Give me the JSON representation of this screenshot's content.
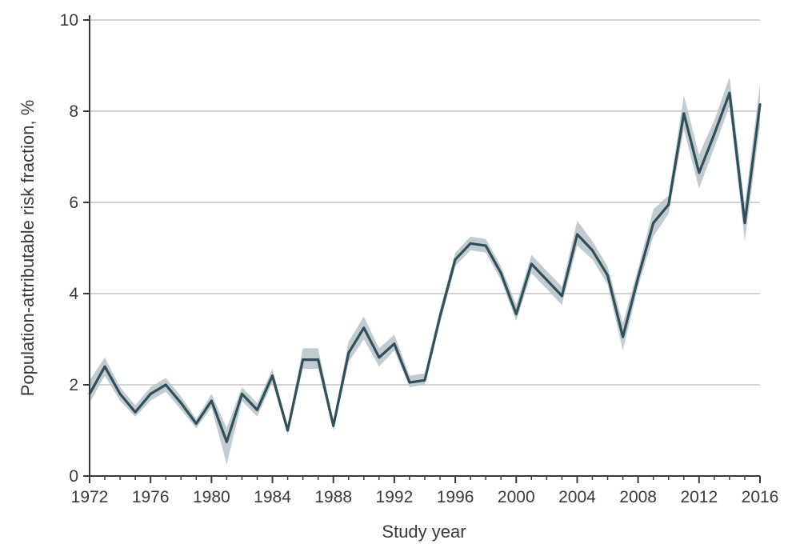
{
  "chart_data": {
    "type": "line",
    "title": "",
    "xlabel": "Study year",
    "ylabel": "Population-attributable risk fraction, %",
    "xlim": [
      1972,
      2016
    ],
    "ylim": [
      0,
      10
    ],
    "x_ticks": [
      1972,
      1976,
      1980,
      1984,
      1988,
      1992,
      1996,
      2000,
      2004,
      2008,
      2012,
      2016
    ],
    "y_ticks": [
      0,
      2,
      4,
      6,
      8,
      10
    ],
    "grid": "horizontal",
    "legend": "none",
    "colors": {
      "line": "#2f4f5b",
      "band": "#b9c7cc",
      "grid": "#d3d3d3",
      "axis": "#3a3a3a"
    },
    "series": [
      {
        "x": [
          1972,
          1973,
          1974,
          1975,
          1976,
          1977,
          1978,
          1979,
          1980,
          1981,
          1982,
          1983,
          1984,
          1985,
          1986,
          1987,
          1988,
          1989,
          1990,
          1991,
          1992,
          1993,
          1994,
          1995,
          1996,
          1997,
          1998,
          1999,
          2000,
          2001,
          2002,
          2003,
          2004,
          2005,
          2006,
          2007,
          2008,
          2009,
          2010,
          2011,
          2012,
          2013,
          2014,
          2015,
          2016
        ],
        "values": [
          1.8,
          2.4,
          1.8,
          1.4,
          1.8,
          2.0,
          1.6,
          1.15,
          1.65,
          0.75,
          1.8,
          1.45,
          2.2,
          1.0,
          2.55,
          2.55,
          1.1,
          2.7,
          3.25,
          2.6,
          2.9,
          2.05,
          2.1,
          3.5,
          4.75,
          5.1,
          5.05,
          4.45,
          3.55,
          4.65,
          4.3,
          3.95,
          5.3,
          4.95,
          4.4,
          3.05,
          4.35,
          5.55,
          5.95,
          7.95,
          6.65,
          7.5,
          8.4,
          5.55,
          8.15
        ],
        "lower": [
          1.6,
          2.2,
          1.65,
          1.3,
          1.65,
          1.85,
          1.45,
          1.05,
          1.5,
          0.25,
          1.65,
          1.3,
          2.05,
          0.9,
          2.35,
          2.35,
          1.0,
          2.5,
          3.0,
          2.4,
          2.75,
          1.95,
          2.0,
          3.35,
          4.6,
          4.95,
          4.9,
          4.3,
          3.4,
          4.45,
          4.1,
          3.75,
          5.05,
          4.75,
          4.2,
          2.75,
          4.15,
          5.25,
          5.75,
          7.6,
          6.3,
          7.2,
          8.1,
          5.15,
          7.7
        ],
        "upper": [
          2.1,
          2.6,
          1.95,
          1.55,
          1.95,
          2.15,
          1.75,
          1.25,
          1.8,
          1.05,
          1.95,
          1.6,
          2.35,
          1.1,
          2.8,
          2.8,
          1.2,
          2.95,
          3.5,
          2.8,
          3.1,
          2.2,
          2.25,
          3.65,
          4.9,
          5.25,
          5.2,
          4.6,
          3.75,
          4.85,
          4.5,
          4.15,
          5.6,
          5.15,
          4.6,
          3.35,
          4.55,
          5.85,
          6.15,
          8.35,
          7.05,
          7.8,
          8.75,
          5.95,
          8.6
        ]
      }
    ]
  }
}
